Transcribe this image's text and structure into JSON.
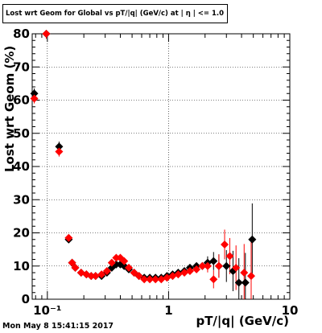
{
  "chart_data": {
    "type": "scatter",
    "title": "Lost wrt Geom for Global vs pT/|q| (GeV/c) at | η | <= 1.0",
    "xlabel": "pT/|q| (GeV/c)",
    "ylabel": "Lost wrt Geom (%)",
    "x_scale": "log",
    "xlim": [
      0.075,
      10
    ],
    "ylim": [
      0,
      80
    ],
    "x_tick_labels": [
      "10⁻¹",
      "1",
      "10"
    ],
    "y_tick_labels": [
      "0",
      "10",
      "20",
      "30",
      "40",
      "50",
      "60",
      "70",
      "80"
    ],
    "grid": true,
    "series": [
      {
        "color": "#000000",
        "marker": "diamond",
        "points": [
          {
            "x": 0.078,
            "y": 62
          },
          {
            "x": 0.098,
            "y": 80
          },
          {
            "x": 0.125,
            "y": 46
          },
          {
            "x": 0.15,
            "y": 18
          },
          {
            "x": 0.16,
            "y": 11
          },
          {
            "x": 0.17,
            "y": 9.5
          },
          {
            "x": 0.19,
            "y": 8
          },
          {
            "x": 0.21,
            "y": 7.5
          },
          {
            "x": 0.23,
            "y": 7
          },
          {
            "x": 0.25,
            "y": 7
          },
          {
            "x": 0.28,
            "y": 7
          },
          {
            "x": 0.31,
            "y": 8
          },
          {
            "x": 0.34,
            "y": 9.5
          },
          {
            "x": 0.37,
            "y": 10.5
          },
          {
            "x": 0.4,
            "y": 10.5
          },
          {
            "x": 0.43,
            "y": 10
          },
          {
            "x": 0.47,
            "y": 9
          },
          {
            "x": 0.52,
            "y": 8
          },
          {
            "x": 0.57,
            "y": 7
          },
          {
            "x": 0.63,
            "y": 6.5
          },
          {
            "x": 0.7,
            "y": 6.5
          },
          {
            "x": 0.78,
            "y": 6.5
          },
          {
            "x": 0.87,
            "y": 6.5
          },
          {
            "x": 0.97,
            "y": 7
          },
          {
            "x": 1.08,
            "y": 7.5
          },
          {
            "x": 1.2,
            "y": 8
          },
          {
            "x": 1.35,
            "y": 8.5
          },
          {
            "x": 1.5,
            "y": 9.5
          },
          {
            "x": 1.7,
            "y": 10
          },
          {
            "x": 1.9,
            "y": 10
          },
          {
            "x": 2.1,
            "y": 11
          },
          {
            "x": 2.35,
            "y": 11.5
          },
          {
            "x": 2.6,
            "y": 10
          },
          {
            "x": 3.0,
            "y": 10
          },
          {
            "x": 3.4,
            "y": 8.5
          },
          {
            "x": 3.8,
            "y": 5
          },
          {
            "x": 4.3,
            "y": 5
          },
          {
            "x": 4.9,
            "y": 18
          }
        ]
      },
      {
        "color": "#ff0000",
        "marker": "diamond",
        "points": [
          {
            "x": 0.078,
            "y": 60.5
          },
          {
            "x": 0.098,
            "y": 80
          },
          {
            "x": 0.125,
            "y": 44.5
          },
          {
            "x": 0.15,
            "y": 18.5
          },
          {
            "x": 0.16,
            "y": 11
          },
          {
            "x": 0.17,
            "y": 9.5
          },
          {
            "x": 0.19,
            "y": 8
          },
          {
            "x": 0.21,
            "y": 7.5
          },
          {
            "x": 0.23,
            "y": 7
          },
          {
            "x": 0.25,
            "y": 7
          },
          {
            "x": 0.28,
            "y": 7.5
          },
          {
            "x": 0.31,
            "y": 8.5
          },
          {
            "x": 0.34,
            "y": 11
          },
          {
            "x": 0.37,
            "y": 12.5
          },
          {
            "x": 0.4,
            "y": 12.5
          },
          {
            "x": 0.43,
            "y": 11.5
          },
          {
            "x": 0.47,
            "y": 9.5
          },
          {
            "x": 0.52,
            "y": 8
          },
          {
            "x": 0.57,
            "y": 7
          },
          {
            "x": 0.63,
            "y": 6
          },
          {
            "x": 0.7,
            "y": 6
          },
          {
            "x": 0.78,
            "y": 6
          },
          {
            "x": 0.87,
            "y": 6
          },
          {
            "x": 0.97,
            "y": 6.5
          },
          {
            "x": 1.08,
            "y": 7
          },
          {
            "x": 1.2,
            "y": 7.5
          },
          {
            "x": 1.35,
            "y": 8
          },
          {
            "x": 1.5,
            "y": 8.5
          },
          {
            "x": 1.7,
            "y": 9
          },
          {
            "x": 1.9,
            "y": 10
          },
          {
            "x": 2.1,
            "y": 10
          },
          {
            "x": 2.35,
            "y": 6
          },
          {
            "x": 2.6,
            "y": 10
          },
          {
            "x": 2.9,
            "y": 16.5
          },
          {
            "x": 3.2,
            "y": 13
          },
          {
            "x": 3.6,
            "y": 9.5
          },
          {
            "x": 4.2,
            "y": 8
          },
          {
            "x": 4.8,
            "y": 7
          }
        ]
      }
    ]
  },
  "footer": {
    "datestamp": "Mon May  8 15:41:15 2017"
  }
}
